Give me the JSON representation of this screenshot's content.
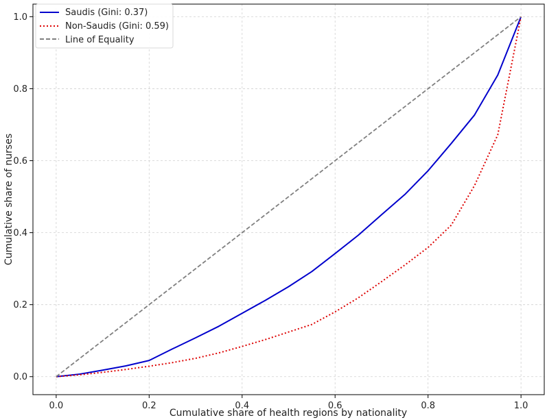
{
  "chart_data": {
    "type": "line",
    "xlabel": "Cumulative share of health regions by nationality",
    "ylabel": "Cumulative share of nurses",
    "xlim": [
      -0.05,
      1.05
    ],
    "ylim": [
      -0.05,
      1.035
    ],
    "x_ticks": [
      "0.0",
      "0.2",
      "0.4",
      "0.6",
      "0.8",
      "1.0"
    ],
    "y_ticks": [
      "0.0",
      "0.2",
      "0.4",
      "0.6",
      "0.8",
      "1.0"
    ],
    "grid": true,
    "legend_position": "top-left",
    "series": [
      {
        "name": "Saudis (Gini: 0.37)",
        "color": "#0000cc",
        "style": "solid",
        "x": [
          0,
          0.05,
          0.1,
          0.15,
          0.2,
          0.25,
          0.3,
          0.35,
          0.4,
          0.45,
          0.5,
          0.55,
          0.6,
          0.65,
          0.7,
          0.75,
          0.8,
          0.85,
          0.9,
          0.95,
          1.0
        ],
        "y": [
          0,
          0.007,
          0.018,
          0.03,
          0.045,
          0.077,
          0.108,
          0.14,
          0.176,
          0.212,
          0.25,
          0.292,
          0.342,
          0.393,
          0.45,
          0.506,
          0.572,
          0.648,
          0.727,
          0.838,
          1.0
        ]
      },
      {
        "name": "Non-Saudis (Gini: 0.59)",
        "color": "#dd0000",
        "style": "dotted",
        "x": [
          0,
          0.05,
          0.1,
          0.15,
          0.2,
          0.25,
          0.3,
          0.35,
          0.4,
          0.45,
          0.5,
          0.55,
          0.6,
          0.65,
          0.7,
          0.75,
          0.8,
          0.85,
          0.9,
          0.95,
          1.0
        ],
        "y": [
          0,
          0.005,
          0.012,
          0.02,
          0.029,
          0.039,
          0.051,
          0.066,
          0.084,
          0.103,
          0.124,
          0.145,
          0.18,
          0.219,
          0.264,
          0.31,
          0.359,
          0.421,
          0.531,
          0.672,
          1.0
        ]
      },
      {
        "name": "Line of Equality",
        "color": "#7f7f7f",
        "style": "dashed",
        "x": [
          0,
          1
        ],
        "y": [
          0,
          1
        ]
      }
    ]
  }
}
